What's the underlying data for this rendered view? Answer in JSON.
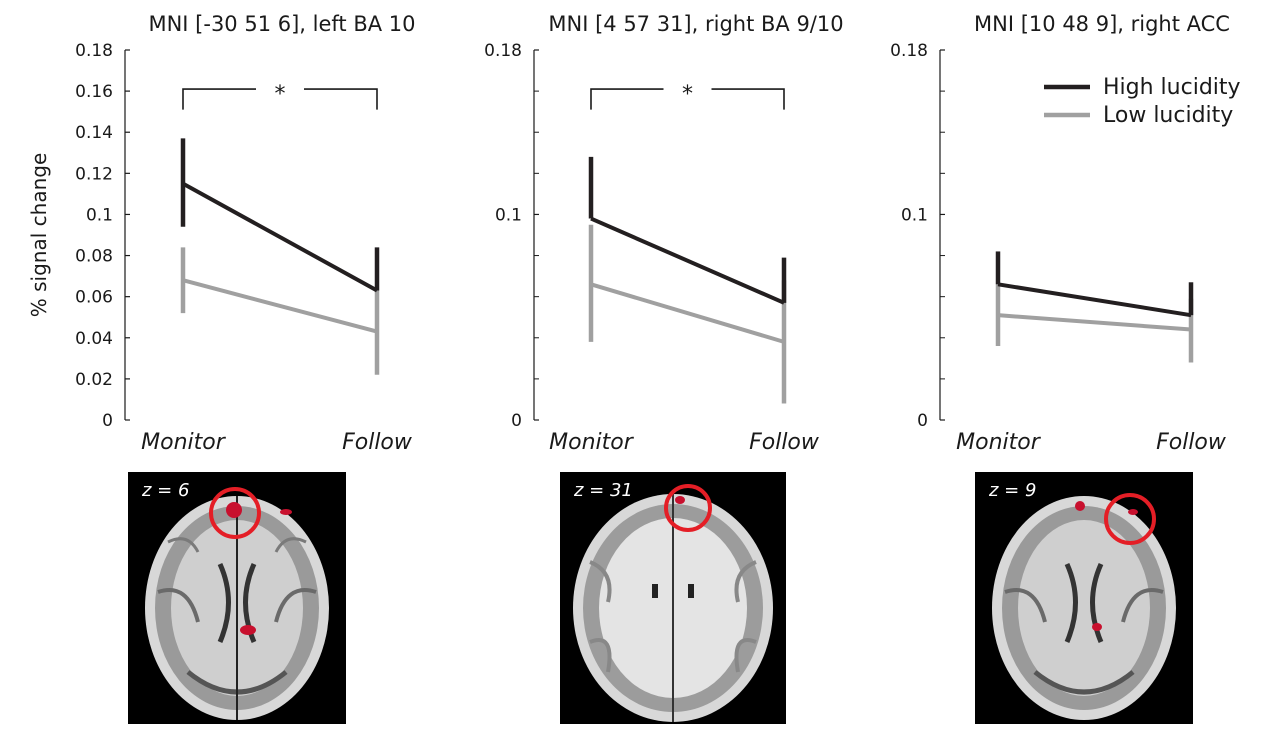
{
  "colors": {
    "high": "#231f20",
    "low": "#a0a0a0",
    "highlight": "#e41e26",
    "blob": "#c8102e"
  },
  "legend": [
    {
      "label": "High lucidity",
      "color": "#231f20"
    },
    {
      "label": "Low lucidity",
      "color": "#a0a0a0"
    }
  ],
  "ylabel": "% signal change",
  "chart_data": [
    {
      "type": "line",
      "title": "MNI [-30 51 6], left BA 10",
      "categories": [
        "Monitor",
        "Follow"
      ],
      "ylabel": "% signal change",
      "ylim": [
        0,
        0.18
      ],
      "yticks": [
        "0",
        "0.02",
        "0.04",
        "0.06",
        "0.08",
        "0.1",
        "0.12",
        "0.14",
        "0.16",
        "0.18"
      ],
      "series": [
        {
          "name": "High lucidity",
          "values": [
            0.115,
            0.063
          ],
          "err_low": [
            0.094,
            0.063
          ],
          "err_high": [
            0.137,
            0.084
          ]
        },
        {
          "name": "Low lucidity",
          "values": [
            0.068,
            0.043
          ],
          "err_low": [
            0.052,
            0.022
          ],
          "err_high": [
            0.084,
            0.063
          ]
        }
      ],
      "significance": {
        "label": "*",
        "bracket_y": 0.161,
        "drop_y": 0.151
      }
    },
    {
      "type": "line",
      "title": "MNI [4 57 31], right BA 9/10",
      "categories": [
        "Monitor",
        "Follow"
      ],
      "ylim": [
        0,
        0.18
      ],
      "yticks": [
        "0",
        "0.1",
        "0.18"
      ],
      "series": [
        {
          "name": "High lucidity",
          "values": [
            0.098,
            0.057
          ],
          "err_low": [
            0.098,
            0.057
          ],
          "err_high": [
            0.128,
            0.079
          ]
        },
        {
          "name": "Low lucidity",
          "values": [
            0.066,
            0.038
          ],
          "err_low": [
            0.038,
            0.008
          ],
          "err_high": [
            0.095,
            0.068
          ]
        }
      ],
      "significance": {
        "label": "*",
        "bracket_y": 0.161,
        "drop_y": 0.151
      }
    },
    {
      "type": "line",
      "title": "MNI [10 48 9], right ACC",
      "categories": [
        "Monitor",
        "Follow"
      ],
      "ylim": [
        0,
        0.18
      ],
      "yticks": [
        "0",
        "0.1",
        "0.18"
      ],
      "series": [
        {
          "name": "High lucidity",
          "values": [
            0.066,
            0.051
          ],
          "err_low": [
            0.066,
            0.051
          ],
          "err_high": [
            0.082,
            0.067
          ]
        },
        {
          "name": "Low lucidity",
          "values": [
            0.051,
            0.044
          ],
          "err_low": [
            0.036,
            0.028
          ],
          "err_high": [
            0.066,
            0.059
          ]
        }
      ]
    }
  ],
  "brain_slices": [
    {
      "label": "z = 6"
    },
    {
      "label": "z = 31"
    },
    {
      "label": "z = 9"
    }
  ]
}
